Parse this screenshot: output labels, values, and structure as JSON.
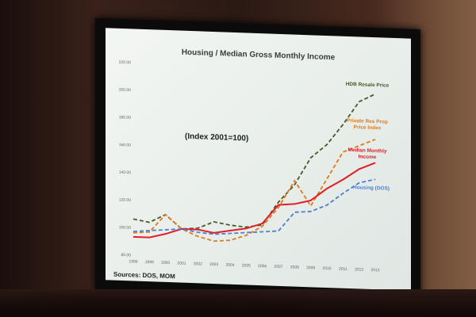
{
  "slide": {
    "title": "Housing / Median Gross Monthly Income",
    "index_note": "(Index 2001=100)",
    "source": "Sources: DOS, MOM"
  },
  "chart_data": {
    "type": "line",
    "title": "Housing / Median Gross Monthly Income",
    "ylim": [
      80,
      220
    ],
    "y_ticks": [
      "80.00",
      "100.00",
      "120.00",
      "140.00",
      "160.00",
      "180.00",
      "200.00",
      "220.00"
    ],
    "x": [
      "1998",
      "1999",
      "2000",
      "2001",
      "2002",
      "2003",
      "2004",
      "2005",
      "2006",
      "2007",
      "2008",
      "2009",
      "2010",
      "2011",
      "2012",
      "2013"
    ],
    "series": [
      {
        "name": "HDB Resale Price",
        "color": "#4a5a2a",
        "dashed": true,
        "values": [
          106,
          104,
          110,
          100,
          101,
          106,
          104,
          103,
          105,
          122,
          135,
          155,
          165,
          180,
          197,
          203
        ]
      },
      {
        "name": "Private Res Prop Price Index",
        "color": "#e07a1e",
        "dashed": true,
        "values": [
          96,
          97,
          110,
          100,
          95,
          92,
          93,
          97,
          104,
          118,
          138,
          120,
          140,
          160,
          165,
          170
        ]
      },
      {
        "name": "Median Monthly Income",
        "color": "#e0202a",
        "dashed": false,
        "values": [
          93,
          93,
          96,
          100,
          100,
          98,
          100,
          102,
          106,
          120,
          121,
          124,
          133,
          140,
          148,
          153
        ]
      },
      {
        "name": "Housing (DOS)",
        "color": "#4f7fd0",
        "dashed": true,
        "values": [
          97,
          98,
          99,
          100,
          98,
          97,
          98,
          99,
          100,
          101,
          115,
          116,
          121,
          130,
          138,
          141
        ]
      }
    ]
  }
}
